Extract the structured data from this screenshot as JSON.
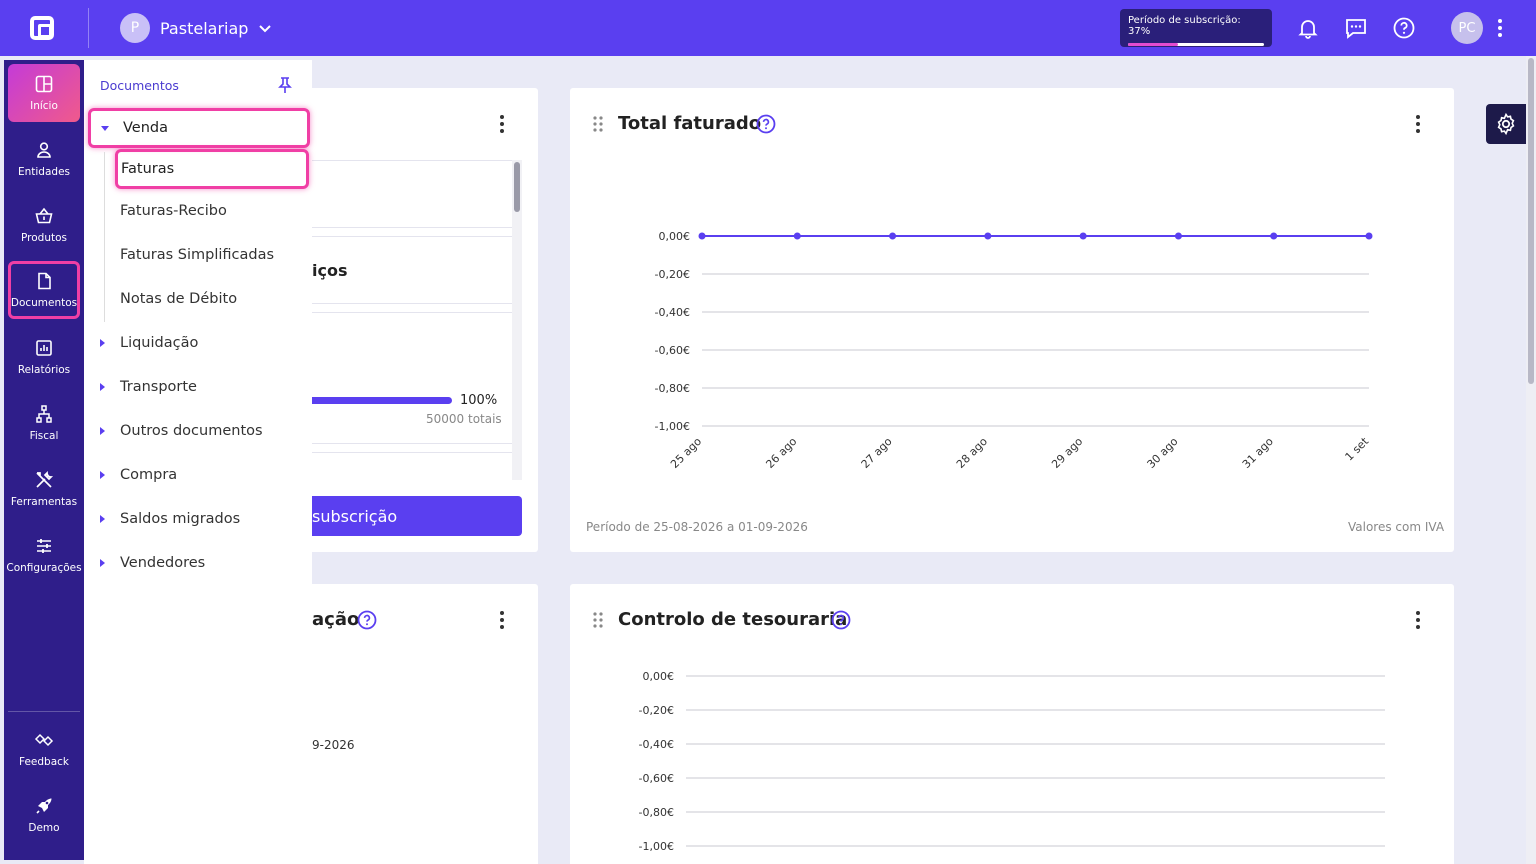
{
  "topbar": {
    "company_initial": "P",
    "company_name": "Pastelariap",
    "subscription_label": "Período de subscrição: 37%",
    "subscription_progress": 0.37,
    "user_initials": "PC"
  },
  "colors": {
    "accent": "#5a3ff0",
    "rail": "#2f1e8a",
    "highlight": "#f03fa5"
  },
  "rail": {
    "items": [
      {
        "label": "Início",
        "icon": "dashboard-icon"
      },
      {
        "label": "Entidades",
        "icon": "user-icon"
      },
      {
        "label": "Produtos",
        "icon": "basket-icon"
      },
      {
        "label": "Documentos",
        "icon": "document-icon"
      },
      {
        "label": "Relatórios",
        "icon": "chart-icon"
      },
      {
        "label": "Fiscal",
        "icon": "hierarchy-icon"
      },
      {
        "label": "Ferramentas",
        "icon": "tools-icon"
      },
      {
        "label": "Configurações",
        "icon": "sliders-icon"
      }
    ],
    "bottom": [
      {
        "label": "Feedback",
        "icon": "feedback-icon"
      },
      {
        "label": "Demo",
        "icon": "rocket-icon"
      }
    ]
  },
  "flyout": {
    "title": "Documentos",
    "venda": "Venda",
    "venda_items": [
      "Faturas",
      "Faturas-Recibo",
      "Faturas Simplificadas",
      "Notas de Débito"
    ],
    "groups": [
      "Liquidação",
      "Transporte",
      "Outros documentos",
      "Compra",
      "Saldos migrados",
      "Vendedores"
    ]
  },
  "left_card": {
    "partial_heading": "iços",
    "percent": "100%",
    "totals": "50000 totais",
    "button": "subscrição",
    "progress_value": 1.0
  },
  "left_card2": {
    "partial_title": "ação",
    "partial_date": "9-2026"
  },
  "total_faturado": {
    "title": "Total faturado",
    "footer_left": "Período de 25-08-2026 a 01-09-2026",
    "footer_right": "Valores com IVA"
  },
  "tesouraria": {
    "title": "Controlo de tesouraria"
  },
  "chart_data": [
    {
      "type": "line",
      "title": "Total faturado",
      "x": [
        "25 ago",
        "26 ago",
        "27 ago",
        "28 ago",
        "29 ago",
        "30 ago",
        "31 ago",
        "1 set"
      ],
      "series": [
        {
          "values": [
            0,
            0,
            0,
            0,
            0,
            0,
            0,
            0
          ]
        }
      ],
      "yticks": [
        "0,00€",
        "-0,20€",
        "-0,40€",
        "-0,60€",
        "-0,80€",
        "-1,00€"
      ],
      "ylim": [
        -1.0,
        0.0
      ],
      "grid": true
    },
    {
      "type": "line",
      "title": "Controlo de tesouraria",
      "yticks": [
        "0,00€",
        "-0,20€",
        "-0,40€",
        "-0,60€",
        "-0,80€",
        "-1,00€"
      ],
      "ylim": [
        -1.0,
        0.0
      ],
      "grid": true
    }
  ]
}
